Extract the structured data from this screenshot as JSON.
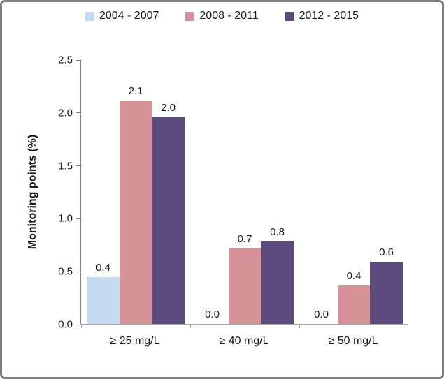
{
  "frame": {
    "background": "#FFFFFF",
    "border_color": "#7F7F7F"
  },
  "legend": {
    "position": "top-center",
    "items": [
      {
        "label": "2004 - 2007",
        "color": "#C5D9F1"
      },
      {
        "label": "2008 - 2011",
        "color": "#D69298"
      },
      {
        "label": "2012 - 2015",
        "color": "#5D4A7C"
      }
    ]
  },
  "chart_data": {
    "type": "bar",
    "title": "",
    "xlabel": "",
    "ylabel": "Monitoring points (%)",
    "ylim": [
      0,
      2.5
    ],
    "yticks": [
      0.0,
      0.5,
      1.0,
      1.5,
      2.0,
      2.5
    ],
    "ytick_labels": [
      "0.0",
      "0.5",
      "1.0",
      "1.5",
      "2.0",
      "2.5"
    ],
    "grid": false,
    "legend_position": "top",
    "categories": [
      "≥ 25 mg/L",
      "≥ 40 mg/L",
      "≥ 50 mg/L"
    ],
    "series": [
      {
        "name": "2004 - 2007",
        "color": "#C5D9F1",
        "values": [
          0.44,
          0.0,
          0.0
        ],
        "labels": [
          "0.4",
          "0.0",
          "0.0"
        ]
      },
      {
        "name": "2008 - 2011",
        "color": "#D69298",
        "values": [
          2.11,
          0.71,
          0.36
        ],
        "labels": [
          "2.1",
          "0.7",
          "0.4"
        ]
      },
      {
        "name": "2012 - 2015",
        "color": "#5D4A7C",
        "values": [
          1.95,
          0.78,
          0.59
        ],
        "labels": [
          "2.0",
          "0.8",
          "0.6"
        ]
      }
    ],
    "axis_colors": {
      "y_axis": "#7F7F7F",
      "x_axis": "#A6A6A6"
    }
  }
}
